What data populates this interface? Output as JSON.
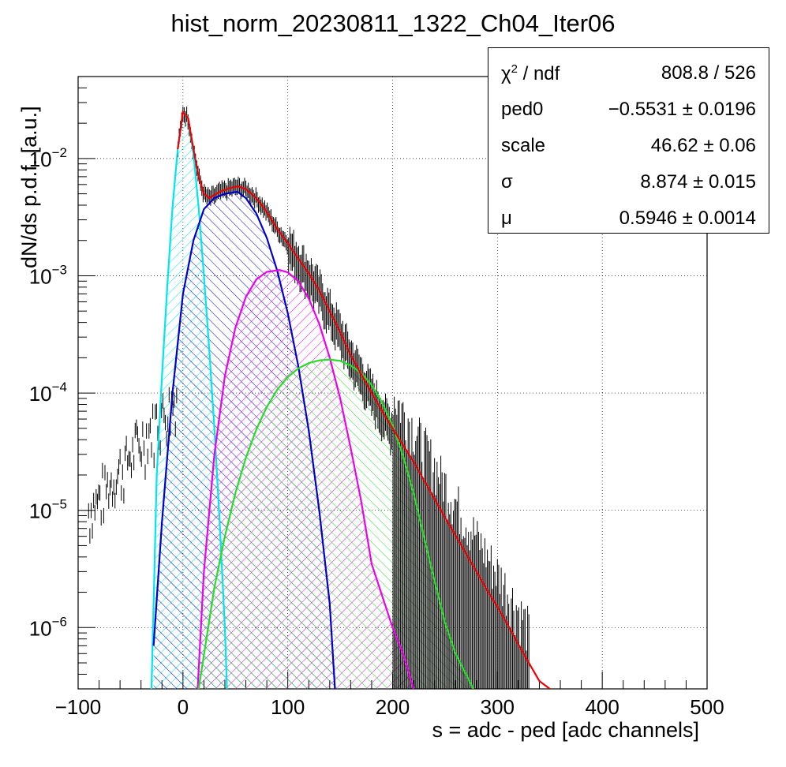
{
  "chart_data": {
    "type": "histogram-with-fit",
    "title": "hist_norm_20230811_1322_Ch04_Iter06",
    "xlabel": "s = adc - ped [adc channels]",
    "ylabel": "dN/ds p.d.f. [a.u.]",
    "xlim": [
      -100,
      500
    ],
    "ylim": [
      3e-07,
      0.05
    ],
    "yscale": "log",
    "grid": true,
    "x_ticks": [
      "−100",
      "0",
      "100",
      "200",
      "300",
      "400",
      "500"
    ],
    "y_ticks": [
      {
        "value": 0.01,
        "label": "10",
        "exp": "−2"
      },
      {
        "value": 0.001,
        "label": "10",
        "exp": "−3"
      },
      {
        "value": 0.0001,
        "label": "10",
        "exp": "−4"
      },
      {
        "value": 1e-05,
        "label": "10",
        "exp": "−5"
      },
      {
        "value": 1e-06,
        "label": "10",
        "exp": "−6"
      }
    ],
    "fit_parameters": {
      "ped0": -0.5531,
      "scale": 46.62,
      "sigma": 8.874,
      "mu": 0.5946
    },
    "series": [
      {
        "color": "#00e5ee",
        "hatch": "fwd",
        "points": [
          [
            -30,
            3e-07
          ],
          [
            -25,
            2e-05
          ],
          [
            -20,
            0.00014
          ],
          [
            -15,
            0.0008
          ],
          [
            -10,
            0.0038
          ],
          [
            -5,
            0.012
          ],
          [
            0,
            0.025
          ],
          [
            5,
            0.022
          ],
          [
            10,
            0.011
          ],
          [
            15,
            0.0038
          ],
          [
            20,
            0.001
          ],
          [
            25,
            0.00024
          ],
          [
            30,
            5e-05
          ],
          [
            35,
            8e-06
          ],
          [
            40,
            1e-06
          ],
          [
            42,
            3e-07
          ]
        ]
      },
      {
        "color": "#0000cc",
        "hatch": "back",
        "points": [
          [
            -28,
            7e-07
          ],
          [
            -20,
            8e-06
          ],
          [
            -10,
            0.0001
          ],
          [
            0,
            0.0007
          ],
          [
            10,
            0.002
          ],
          [
            20,
            0.0037
          ],
          [
            30,
            0.0046
          ],
          [
            40,
            0.005
          ],
          [
            52,
            0.0052
          ],
          [
            60,
            0.0046
          ],
          [
            70,
            0.0034
          ],
          [
            80,
            0.0021
          ],
          [
            90,
            0.0011
          ],
          [
            100,
            0.00048
          ],
          [
            110,
            0.00017
          ],
          [
            120,
            4.8e-05
          ],
          [
            130,
            1e-05
          ],
          [
            140,
            1.6e-06
          ],
          [
            145,
            3e-07
          ]
        ]
      },
      {
        "color": "#ee00ee",
        "hatch": "fwd",
        "points": [
          [
            14,
            3e-07
          ],
          [
            20,
            3e-06
          ],
          [
            30,
            3e-05
          ],
          [
            40,
            0.00014
          ],
          [
            50,
            0.00036
          ],
          [
            60,
            0.00066
          ],
          [
            70,
            0.00093
          ],
          [
            80,
            0.00108
          ],
          [
            92,
            0.00112
          ],
          [
            100,
            0.00107
          ],
          [
            110,
            0.0009
          ],
          [
            120,
            0.00064
          ],
          [
            130,
            0.00039
          ],
          [
            140,
            0.0002
          ],
          [
            150,
            9e-05
          ],
          [
            160,
            3.4e-05
          ],
          [
            170,
            1.2e-05
          ],
          [
            180,
            3.5e-06
          ],
          [
            200,
            1e-06
          ],
          [
            210,
            6e-07
          ],
          [
            220,
            3e-07
          ]
        ]
      },
      {
        "color": "#22e022",
        "hatch": "back",
        "points": [
          [
            15,
            3e-07
          ],
          [
            30,
            2.2e-06
          ],
          [
            40,
            6e-06
          ],
          [
            50,
            1.4e-05
          ],
          [
            60,
            2.8e-05
          ],
          [
            70,
            4.9e-05
          ],
          [
            80,
            7.6e-05
          ],
          [
            90,
            0.000107
          ],
          [
            100,
            0.000137
          ],
          [
            110,
            0.000162
          ],
          [
            120,
            0.00018
          ],
          [
            130,
            0.00019
          ],
          [
            140,
            0.000193
          ],
          [
            150,
            0.000188
          ],
          [
            160,
            0.000172
          ],
          [
            170,
            0.000148
          ],
          [
            180,
            0.000117
          ],
          [
            190,
            8.3e-05
          ],
          [
            200,
            5.3e-05
          ],
          [
            210,
            2.9e-05
          ],
          [
            220,
            1.4e-05
          ],
          [
            230,
            5.9e-06
          ],
          [
            240,
            2.5e-06
          ],
          [
            250,
            1.1e-06
          ],
          [
            260,
            6e-07
          ],
          [
            270,
            4e-07
          ],
          [
            277,
            3e-07
          ]
        ]
      },
      {
        "color": "#ee0000",
        "hatch": "none",
        "points": [
          [
            -5,
            0.012
          ],
          [
            0,
            0.025
          ],
          [
            5,
            0.022
          ],
          [
            10,
            0.012
          ],
          [
            15,
            0.007
          ],
          [
            20,
            0.005
          ],
          [
            25,
            0.0046
          ],
          [
            35,
            0.0052
          ],
          [
            45,
            0.0056
          ],
          [
            52,
            0.0058
          ],
          [
            60,
            0.0055
          ],
          [
            70,
            0.0046
          ],
          [
            80,
            0.0035
          ],
          [
            90,
            0.0025
          ],
          [
            100,
            0.0019
          ],
          [
            110,
            0.0014
          ],
          [
            120,
            0.00105
          ],
          [
            130,
            0.00075
          ],
          [
            140,
            0.0005
          ],
          [
            150,
            0.00033
          ],
          [
            160,
            0.00021
          ],
          [
            170,
            0.000145
          ],
          [
            180,
            0.0001
          ],
          [
            190,
            7e-05
          ],
          [
            200,
            5e-05
          ],
          [
            210,
            3.6e-05
          ],
          [
            220,
            2.6e-05
          ],
          [
            230,
            1.8e-05
          ],
          [
            240,
            1.25e-05
          ],
          [
            250,
            8.7e-06
          ],
          [
            260,
            6.1e-06
          ],
          [
            270,
            4.3e-06
          ],
          [
            280,
            3e-06
          ],
          [
            290,
            2.1e-06
          ],
          [
            300,
            1.5e-06
          ],
          [
            310,
            1.05e-06
          ],
          [
            320,
            7.2e-07
          ],
          [
            330,
            5e-07
          ],
          [
            340,
            3.5e-07
          ],
          [
            350,
            3e-07
          ]
        ]
      }
    ]
  },
  "stats": [
    {
      "key": "χ",
      "sup": "2",
      "rest": " / ndf",
      "value": "808.8 / 526"
    },
    {
      "key": "ped0",
      "sup": "",
      "rest": "",
      "value": "−0.5531 ± 0.0196"
    },
    {
      "key": "scale",
      "sup": "",
      "rest": "",
      "value": "46.62 ± 0.06"
    },
    {
      "key": "σ",
      "sup": "",
      "rest": "",
      "value": "8.874 ± 0.015"
    },
    {
      "key": "μ",
      "sup": "",
      "rest": "",
      "value": "0.5946 ± 0.0014"
    }
  ]
}
